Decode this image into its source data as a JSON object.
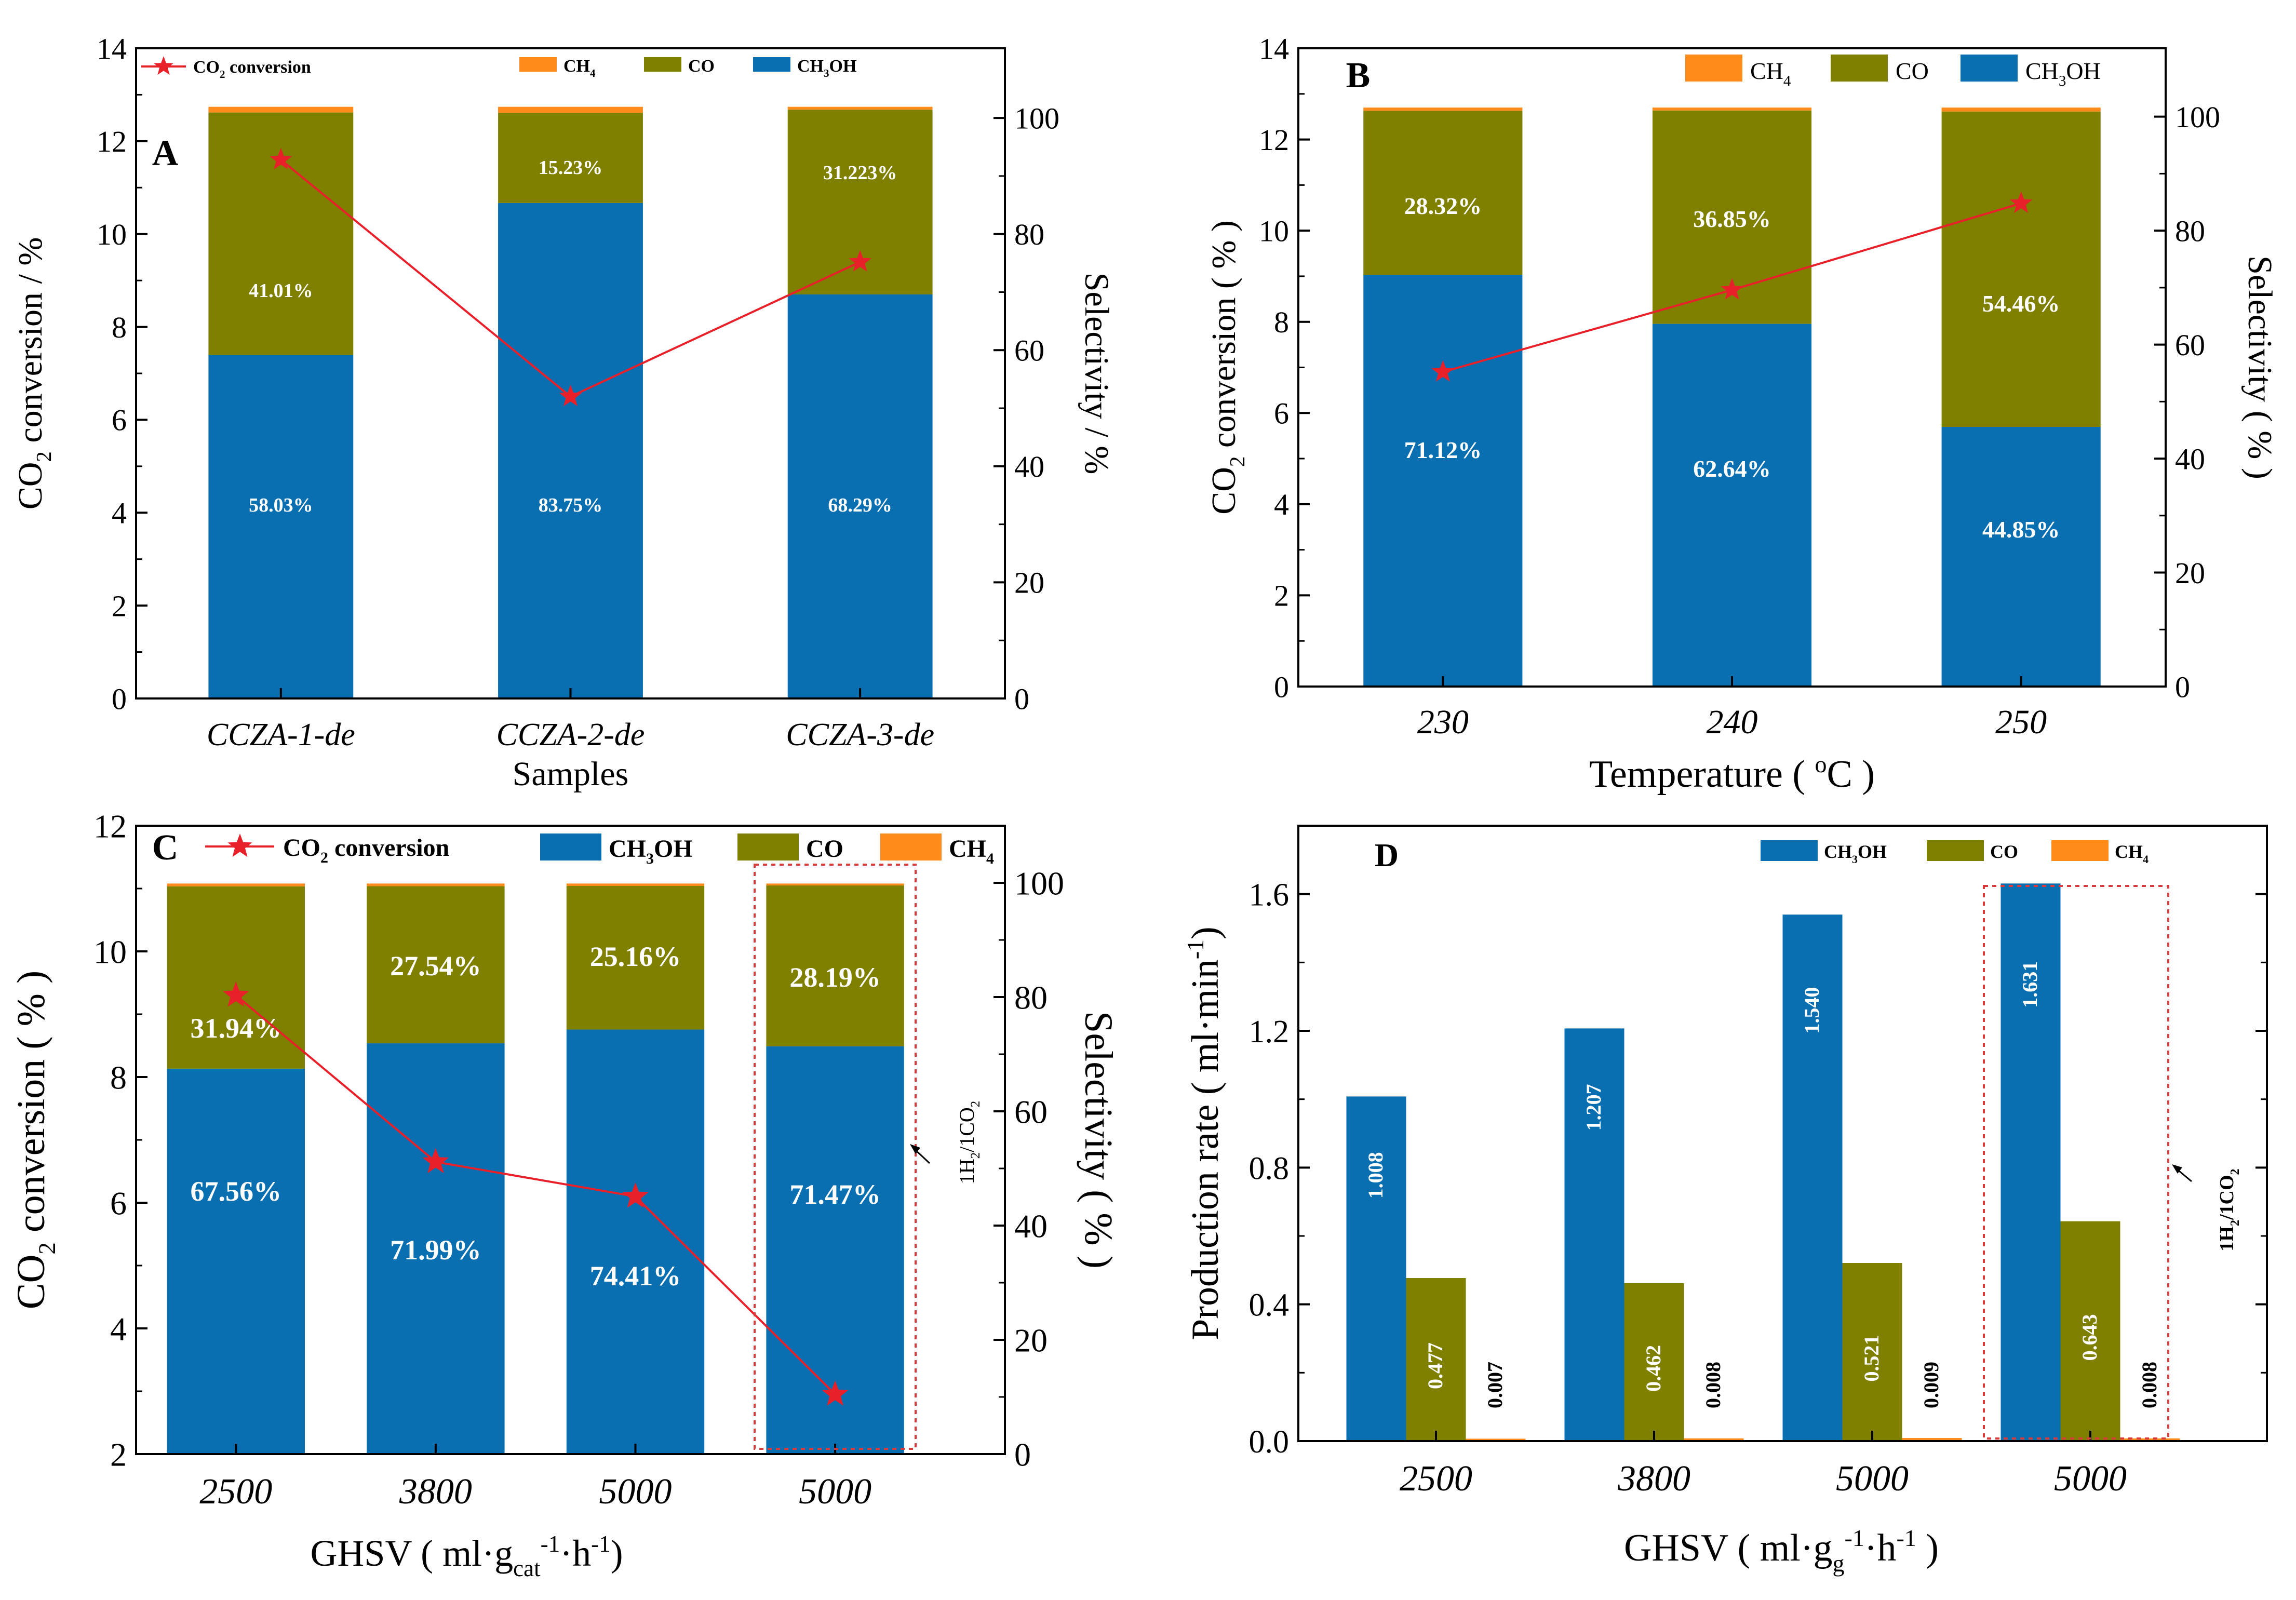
{
  "colors": {
    "ch3oh": "#0a6fb0",
    "co": "#7f7f00",
    "ch4": "#ff8c1a",
    "conversion": "#e8202a",
    "axis": "#000000",
    "box": "#d93a3a"
  },
  "chart_data": [
    {
      "id": "A",
      "type": "bar",
      "stacked": true,
      "panel_label": "A",
      "categories": [
        "CCZA-1-de",
        "CCZA-2-de",
        "CCZA-3-de"
      ],
      "xlabel": "Samples",
      "ylabel_left_parts": [
        "CO",
        "2",
        " conversion / %"
      ],
      "ylabel_right": "Selectivity / %",
      "ylim_left": [
        0,
        14
      ],
      "yticks_left": [
        "0",
        "2",
        "4",
        "6",
        "8",
        "10",
        "12",
        "14"
      ],
      "ylim_right": [
        0,
        112
      ],
      "yticks_right": [
        "0",
        "20",
        "40",
        "60",
        "80",
        "100"
      ],
      "series": [
        {
          "name": "CH3OH",
          "values": [
            58.03,
            83.75,
            68.29
          ],
          "labels": [
            "58.03%",
            "83.75%",
            "68.29%"
          ]
        },
        {
          "name": "CO",
          "values": [
            41.01,
            15.23,
            31.223
          ],
          "labels": [
            "41.01%",
            "15.23%",
            "31.223%"
          ]
        },
        {
          "name": "CH4",
          "values": [
            0.96,
            1.02,
            0.49
          ]
        }
      ],
      "conversion": [
        11.6,
        6.5,
        9.4
      ],
      "legend": {
        "conversion_parts": [
          "CO",
          "2",
          " conversion"
        ],
        "ch4_parts": [
          "CH",
          "4",
          ""
        ],
        "co": "CO",
        "ch3oh_parts": [
          "CH",
          "3",
          "OH"
        ]
      }
    },
    {
      "id": "B",
      "type": "bar",
      "stacked": true,
      "panel_label": "B",
      "categories": [
        "230",
        "240",
        "250"
      ],
      "xlabel_parts": [
        "Temperature ( ",
        "o",
        "C )"
      ],
      "ylabel_left_parts": [
        "CO",
        "2",
        " conversion ( % )"
      ],
      "ylabel_right": "Selectivity  ( % )",
      "ylim_left": [
        0,
        14
      ],
      "yticks_left": [
        "0",
        "2",
        "4",
        "6",
        "8",
        "10",
        "12",
        "14"
      ],
      "ylim_right": [
        0,
        112
      ],
      "yticks_right": [
        "0",
        "20",
        "40",
        "60",
        "80",
        "100"
      ],
      "series": [
        {
          "name": "CH3OH",
          "values": [
            71.12,
            62.64,
            44.85
          ],
          "labels": [
            "71.12%",
            "62.64%",
            "44.85%"
          ]
        },
        {
          "name": "CO",
          "values": [
            28.32,
            36.85,
            54.46
          ],
          "labels": [
            "28.32%",
            "36.85%",
            "54.46%"
          ]
        },
        {
          "name": "CH4",
          "values": [
            0.56,
            0.51,
            0.69
          ]
        }
      ],
      "conversion": [
        6.9,
        8.7,
        10.6
      ],
      "legend": {
        "ch4_parts": [
          "CH",
          "4",
          ""
        ],
        "co": "CO",
        "ch3oh_parts": [
          "CH",
          "3",
          "OH"
        ]
      }
    },
    {
      "id": "C",
      "type": "bar",
      "stacked": true,
      "panel_label": "C",
      "categories": [
        "2500",
        "3800",
        "5000",
        "5000"
      ],
      "xlabel_parts": [
        "GHSV ( ml·g",
        "cat",
        "-1",
        "·h",
        "-1",
        ")"
      ],
      "ylabel_left_parts": [
        "CO",
        "2",
        " conversion ( % )"
      ],
      "ylabel_right": "Selectivity  ( % )",
      "ylim_left": [
        2,
        12
      ],
      "yticks_left": [
        "2",
        "4",
        "6",
        "8",
        "10",
        "12"
      ],
      "ylim_right": [
        0,
        110
      ],
      "yticks_right": [
        "0",
        "20",
        "40",
        "60",
        "80",
        "100"
      ],
      "series": [
        {
          "name": "CH3OH",
          "values": [
            67.56,
            71.99,
            74.41,
            71.47
          ],
          "labels": [
            "67.56%",
            "71.99%",
            "74.41%",
            "71.47%"
          ]
        },
        {
          "name": "CO",
          "values": [
            31.94,
            27.54,
            25.16,
            28.19
          ],
          "labels": [
            "31.94%",
            "27.54%",
            "25.16%",
            "28.19%"
          ]
        },
        {
          "name": "CH4",
          "values": [
            0.5,
            0.47,
            0.43,
            0.34
          ]
        }
      ],
      "conversion": [
        9.3,
        6.65,
        6.1,
        2.95
      ],
      "annotation_parts": [
        "1H",
        "2",
        "/1CO",
        "2",
        ""
      ],
      "legend": {
        "conversion_parts": [
          "CO",
          "2",
          " conversion"
        ],
        "ch3oh_parts": [
          "CH",
          "3",
          "OH"
        ],
        "co": "CO",
        "ch4_parts": [
          "CH",
          "4",
          ""
        ]
      }
    },
    {
      "id": "D",
      "type": "bar",
      "stacked": false,
      "panel_label": "D",
      "categories": [
        "2500",
        "3800",
        "5000",
        "5000"
      ],
      "xlabel_parts": [
        "GHSV ( ml·",
        "g",
        "g",
        "-1",
        "·h",
        "-1",
        " )"
      ],
      "ylabel_parts": [
        "Production rate ( ml·min",
        "-1",
        ")"
      ],
      "ylim": [
        0,
        1.8
      ],
      "yticks": [
        "0.0",
        "0.4",
        "0.8",
        "1.2",
        "1.6"
      ],
      "series": [
        {
          "name": "CH3OH",
          "values": [
            1.008,
            1.207,
            1.54,
            1.631
          ],
          "labels": [
            "1.008",
            "1.207",
            "1.540",
            "1.631"
          ]
        },
        {
          "name": "CO",
          "values": [
            0.477,
            0.462,
            0.521,
            0.643
          ],
          "labels": [
            "0.477",
            "0.462",
            "0.521",
            "0.643"
          ]
        },
        {
          "name": "CH4",
          "values": [
            0.007,
            0.008,
            0.009,
            0.008
          ],
          "labels": [
            "0.007",
            "0.008",
            "0.009",
            "0.008"
          ]
        }
      ],
      "annotation_parts": [
        "1H",
        "2",
        "/1CO",
        "2",
        ""
      ],
      "legend": {
        "ch3oh_parts": [
          "CH",
          "3",
          "OH"
        ],
        "co": "CO",
        "ch4_parts": [
          "CH",
          "4",
          ""
        ]
      }
    }
  ]
}
